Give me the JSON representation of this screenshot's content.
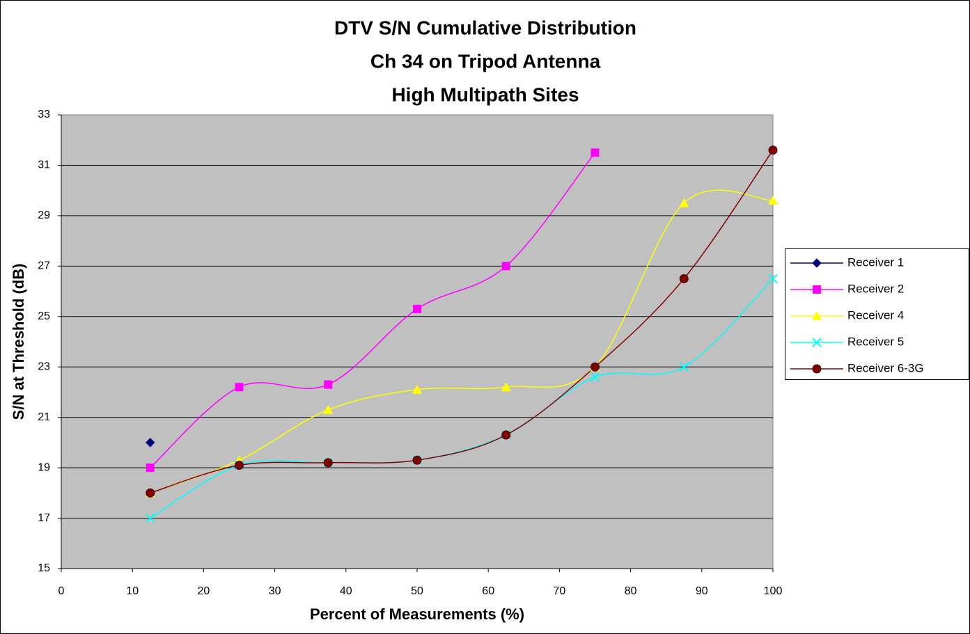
{
  "chart_data": {
    "type": "line",
    "title": [
      "DTV S/N Cumulative Distribution",
      "Ch 34 on Tripod Antenna",
      "High Multipath Sites"
    ],
    "x_label": "Percent of Measurements (%)",
    "y_label": "S/N at Threshold (dB)",
    "x": [
      12.5,
      25,
      37.5,
      50,
      62.5,
      75,
      87.5,
      100
    ],
    "series": [
      {
        "name": "Receiver 1",
        "color": "#000080",
        "marker": "diamond",
        "values": [
          20,
          null,
          null,
          null,
          null,
          null,
          null,
          null
        ]
      },
      {
        "name": "Receiver 2",
        "color": "#ff00ff",
        "marker": "square",
        "values": [
          19,
          22.2,
          22.3,
          25.3,
          27,
          31.5,
          null,
          null
        ]
      },
      {
        "name": "Receiver 4",
        "color": "#ffff00",
        "marker": "triangle",
        "values": [
          18,
          19.3,
          21.3,
          22.1,
          22.2,
          23,
          29.5,
          29.6
        ]
      },
      {
        "name": "Receiver 5",
        "color": "#00ffff",
        "marker": "x",
        "values": [
          17,
          19.1,
          19.2,
          19.3,
          20.3,
          22.6,
          23,
          26.5
        ]
      },
      {
        "name": "Receiver 6-3G",
        "color": "#800000",
        "marker": "circle",
        "values": [
          18,
          19.1,
          19.2,
          19.3,
          20.3,
          23,
          26.5,
          31.6
        ]
      }
    ],
    "xlim": [
      0,
      100
    ],
    "xticks": [
      0,
      10,
      20,
      30,
      40,
      50,
      60,
      70,
      80,
      90,
      100
    ],
    "ylim": [
      15,
      33
    ],
    "yticks": [
      15,
      17,
      19,
      21,
      23,
      25,
      27,
      29,
      31,
      33
    ],
    "grid": true,
    "smooth": true,
    "legend": "right"
  }
}
